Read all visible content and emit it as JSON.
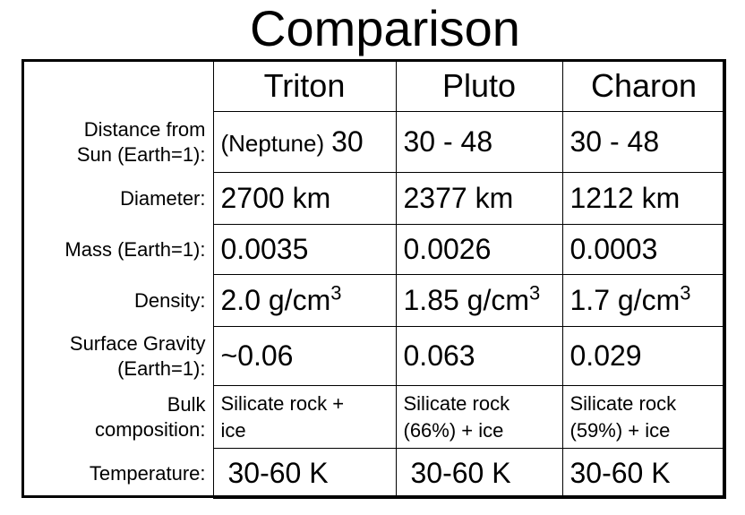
{
  "title": "Comparison",
  "columns": [
    "Triton",
    "Pluto",
    "Charon"
  ],
  "rows": {
    "distance": {
      "label_l1": "Distance from",
      "label_l2": "Sun (Earth=1):",
      "triton_note": "(Neptune)",
      "triton": "30",
      "pluto": "30 - 48",
      "charon": "30 - 48"
    },
    "diameter": {
      "label": "Diameter:",
      "triton": "2700 km",
      "pluto": "2377 km",
      "charon": "1212 km"
    },
    "mass": {
      "label": "Mass (Earth=1):",
      "triton": "0.0035",
      "pluto": "0.0026",
      "charon": "0.0003"
    },
    "density": {
      "label": "Density:",
      "triton": "2.0 g/cm",
      "pluto": "1.85 g/cm",
      "charon": "1.7 g/cm",
      "unit_exp": "3"
    },
    "gravity": {
      "label_l1": "Surface Gravity",
      "label_l2": "(Earth=1):",
      "triton": "~0.06",
      "pluto": "0.063",
      "charon": "0.029"
    },
    "composition": {
      "label_l1": "Bulk",
      "label_l2": "composition:",
      "triton_l1": "Silicate rock +",
      "triton_l2": "ice",
      "pluto_l1": "Silicate rock",
      "pluto_l2": "(66%) + ice",
      "charon_l1": "Silicate rock",
      "charon_l2": "(59%) + ice"
    },
    "temperature": {
      "label": "Temperature:",
      "triton": "30-60 K",
      "pluto": "30-60 K",
      "charon": "30-60 K"
    }
  }
}
